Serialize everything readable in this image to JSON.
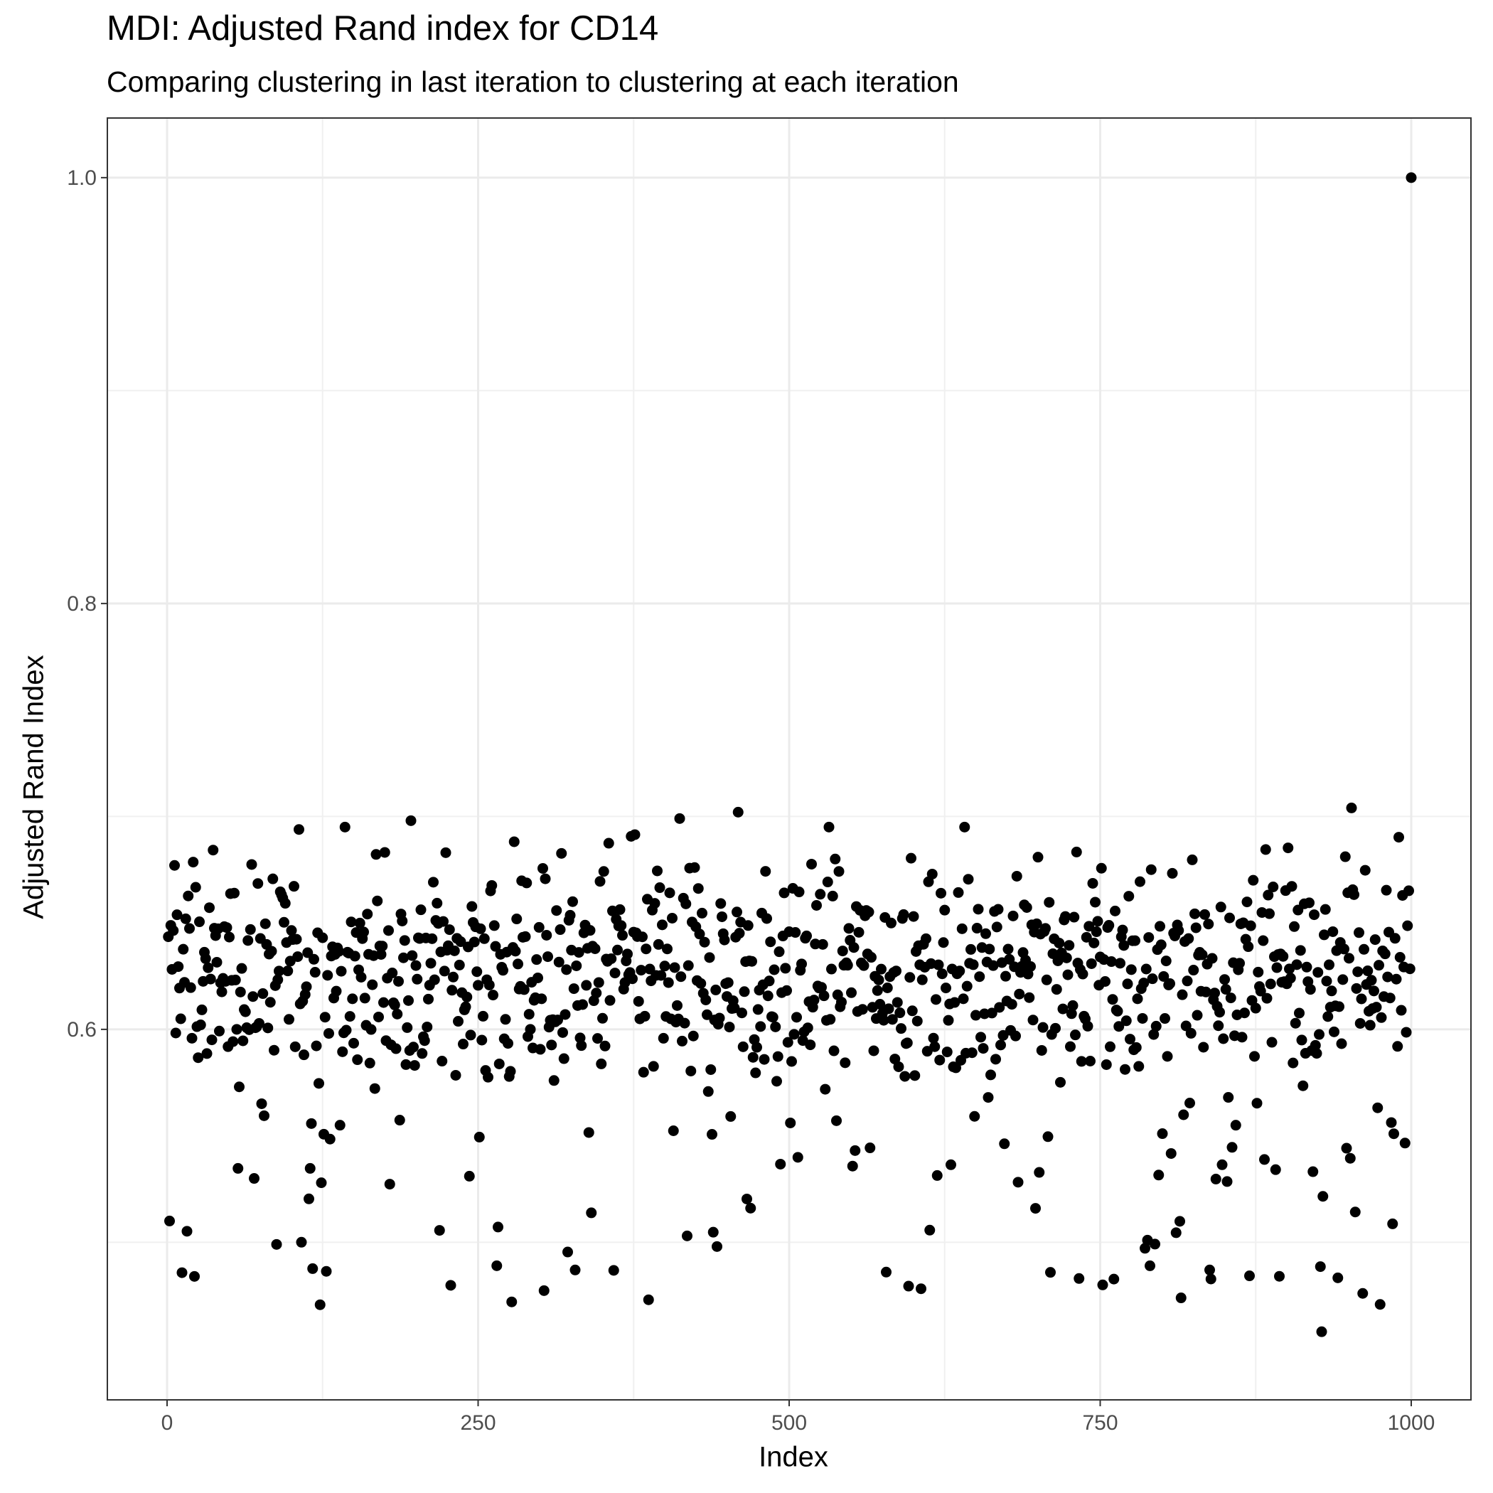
{
  "chart_data": {
    "type": "scatter",
    "title": "MDI: Adjusted Rand index for CD14",
    "subtitle": "Comparing clustering in last iteration to clustering at each iteration",
    "xlabel": "Index",
    "ylabel": "Adjusted Rand Index",
    "xlim": [
      -48,
      1048
    ],
    "ylim": [
      0.426,
      1.028
    ],
    "x_ticks": [
      0,
      250,
      500,
      750,
      1000
    ],
    "x_tick_labels": [
      "0",
      "250",
      "500",
      "750",
      "1000"
    ],
    "y_ticks": [
      0.6,
      0.8,
      1.0
    ],
    "y_tick_labels": [
      "0.6",
      "0.8",
      "1.0"
    ],
    "grid": true,
    "legend": "none",
    "point_color": "#000000",
    "points_note": "1000 points; values scattered between about 0.45 and 0.71, final point at index 1000 equals 1.0",
    "highlighted_points": [
      {
        "x": 1000,
        "y": 1.0
      },
      {
        "x": 2,
        "y": 0.51
      },
      {
        "x": 6,
        "y": 0.677
      },
      {
        "x": 196,
        "y": 0.698
      },
      {
        "x": 412,
        "y": 0.699
      },
      {
        "x": 459,
        "y": 0.702
      },
      {
        "x": 952,
        "y": 0.704
      },
      {
        "x": 277,
        "y": 0.472
      },
      {
        "x": 387,
        "y": 0.473
      },
      {
        "x": 961,
        "y": 0.476
      },
      {
        "x": 928,
        "y": 0.458
      },
      {
        "x": 752,
        "y": 0.48
      },
      {
        "x": 578,
        "y": 0.486
      },
      {
        "x": 733,
        "y": 0.483
      },
      {
        "x": 88,
        "y": 0.499
      },
      {
        "x": 265,
        "y": 0.489
      },
      {
        "x": 328,
        "y": 0.487
      },
      {
        "x": 418,
        "y": 0.503
      },
      {
        "x": 788,
        "y": 0.501
      },
      {
        "x": 838,
        "y": 0.487
      }
    ]
  }
}
